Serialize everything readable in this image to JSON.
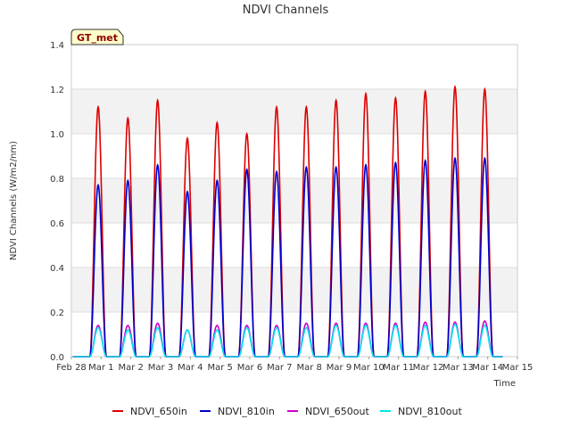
{
  "chart_data": {
    "type": "line",
    "title": "NDVI Channels",
    "xlabel": "Time",
    "ylabel": "NDVI Channels (W/m2/nm)",
    "badge": "GT_met",
    "ylim": [
      0,
      1.4
    ],
    "xlim": [
      0,
      15
    ],
    "yticks": [
      0.0,
      0.2,
      0.4,
      0.6,
      0.8,
      1.0,
      1.2,
      1.4
    ],
    "ytick_labels": [
      "0.0",
      "0.2",
      "0.4",
      "0.6",
      "0.8",
      "1.0",
      "1.2",
      "1.4"
    ],
    "xticks": [
      0,
      1,
      2,
      3,
      4,
      5,
      6,
      7,
      8,
      9,
      10,
      11,
      12,
      13,
      14,
      15
    ],
    "xtick_labels": [
      "Feb 28",
      "Mar 1",
      "Mar 2",
      "Mar 3",
      "Mar 4",
      "Mar 5",
      "Mar 6",
      "Mar 7",
      "Mar 8",
      "Mar 9",
      "Mar 10",
      "Mar 11",
      "Mar 12",
      "Mar 13",
      "Mar 14",
      "Mar 15"
    ],
    "grid": true,
    "legend_position": "bottom",
    "series": [
      {
        "name": "NDVI_650in",
        "color": "#dd0000",
        "peak_day": [
          0.9,
          1.9,
          2.9,
          3.9,
          4.9,
          5.9,
          6.9,
          7.9,
          8.9,
          9.9,
          10.9,
          11.9,
          12.9,
          13.9
        ],
        "peaks": [
          1.12,
          1.07,
          1.15,
          0.98,
          1.05,
          1.0,
          1.12,
          1.12,
          1.15,
          1.18,
          1.16,
          1.19,
          1.21,
          1.2
        ]
      },
      {
        "name": "NDVI_810in",
        "color": "#0000cc",
        "peak_day": [
          0.9,
          1.9,
          2.9,
          3.9,
          4.9,
          5.9,
          6.9,
          7.9,
          8.9,
          9.9,
          10.9,
          11.9,
          12.9,
          13.9
        ],
        "peaks": [
          0.77,
          0.79,
          0.86,
          0.74,
          0.79,
          0.84,
          0.83,
          0.85,
          0.85,
          0.86,
          0.87,
          0.88,
          0.89,
          0.89
        ]
      },
      {
        "name": "NDVI_650out",
        "color": "#cc00cc",
        "peak_day": [
          0.9,
          1.9,
          2.9,
          3.9,
          4.9,
          5.9,
          6.9,
          7.9,
          8.9,
          9.9,
          10.9,
          11.9,
          12.9,
          13.9
        ],
        "peaks": [
          0.14,
          0.14,
          0.15,
          0.12,
          0.14,
          0.14,
          0.14,
          0.15,
          0.15,
          0.15,
          0.15,
          0.155,
          0.155,
          0.16
        ]
      },
      {
        "name": "NDVI_810out",
        "color": "#00e5ee",
        "peak_day": [
          0.9,
          1.9,
          2.9,
          3.9,
          4.9,
          5.9,
          6.9,
          7.9,
          8.9,
          9.9,
          10.9,
          11.9,
          12.9,
          13.9
        ],
        "peaks": [
          0.13,
          0.12,
          0.13,
          0.12,
          0.12,
          0.13,
          0.13,
          0.13,
          0.14,
          0.14,
          0.14,
          0.14,
          0.145,
          0.14
        ]
      }
    ]
  }
}
